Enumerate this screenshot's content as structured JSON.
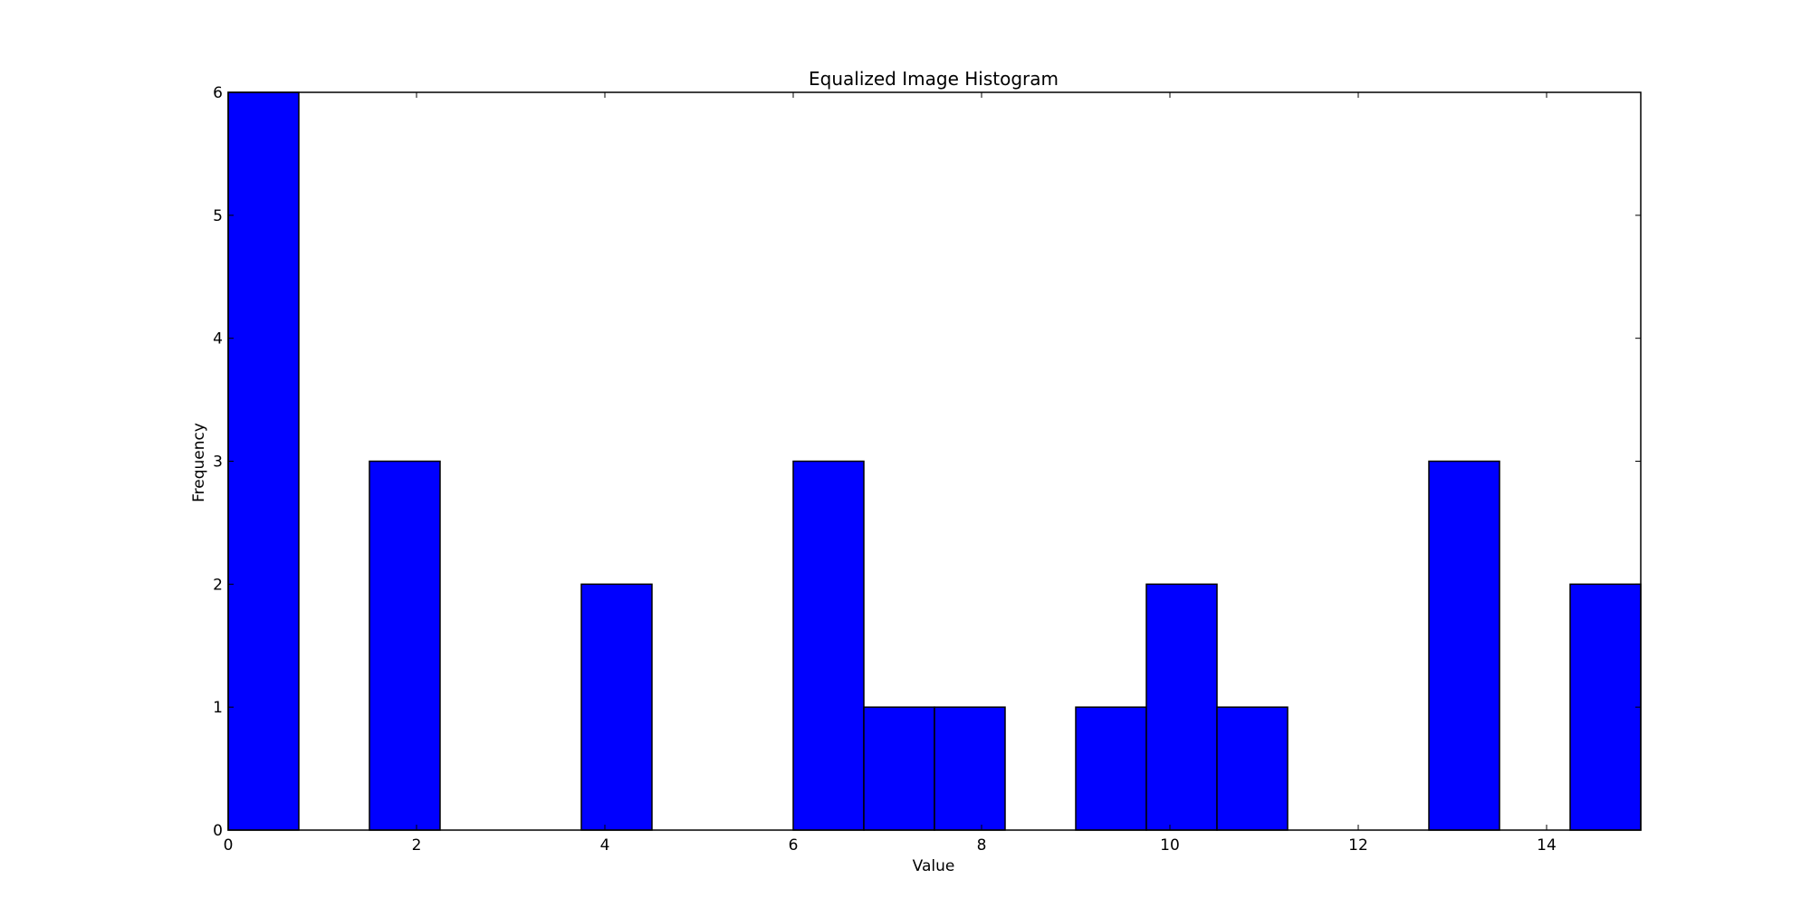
{
  "chart_data": {
    "type": "bar",
    "title": "Equalized Image Histogram",
    "xlabel": "Value",
    "ylabel": "Frequency",
    "xlim": [
      0,
      15
    ],
    "ylim": [
      0,
      6
    ],
    "xticks": [
      "0",
      "2",
      "4",
      "6",
      "8",
      "10",
      "12",
      "14"
    ],
    "yticks": [
      "0",
      "1",
      "2",
      "3",
      "4",
      "5",
      "6"
    ],
    "bin_edges": [
      0,
      0.75,
      1.5,
      2.25,
      3,
      3.75,
      4.5,
      5.25,
      6,
      6.75,
      7.5,
      8.25,
      9,
      9.75,
      10.5,
      11.25,
      12,
      12.75,
      13.5,
      14.25,
      15
    ],
    "values": [
      6,
      0,
      3,
      0,
      0,
      2,
      0,
      0,
      3,
      1,
      1,
      0,
      1,
      2,
      1,
      0,
      0,
      3,
      0,
      2
    ],
    "grid": false,
    "bar_color": "#0000ff",
    "edge_color": "#000000"
  }
}
